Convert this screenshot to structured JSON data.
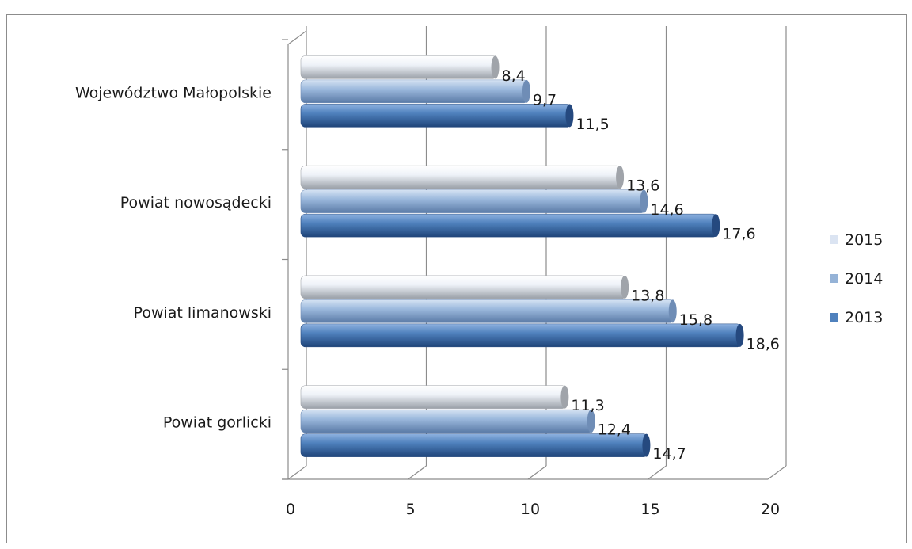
{
  "chart_data": {
    "type": "bar",
    "orientation": "horizontal",
    "categories": [
      "Powiat gorlicki",
      "Powiat limanowski",
      "Powiat nowosądecki",
      "Województwo Małopolskie"
    ],
    "series": [
      {
        "name": "2015",
        "values": [
          11.3,
          13.8,
          13.6,
          8.4
        ],
        "labels": [
          "11,3",
          "13,8",
          "13,6",
          "8,4"
        ],
        "color": "#dbe4f2"
      },
      {
        "name": "2014",
        "values": [
          12.4,
          15.8,
          14.6,
          9.7
        ],
        "labels": [
          "12,4",
          "15,8",
          "14,6",
          "9,7"
        ],
        "color": "#95b3d7"
      },
      {
        "name": "2013",
        "values": [
          14.7,
          18.6,
          17.6,
          11.5
        ],
        "labels": [
          "14,7",
          "18,6",
          "17,6",
          "11,5"
        ],
        "color": "#4f81bd"
      }
    ],
    "xlim": [
      0,
      20
    ],
    "xticks": [
      "0",
      "5",
      "10",
      "15",
      "20"
    ],
    "grid": true,
    "legend_position": "right",
    "style": "3d-cylinder"
  }
}
